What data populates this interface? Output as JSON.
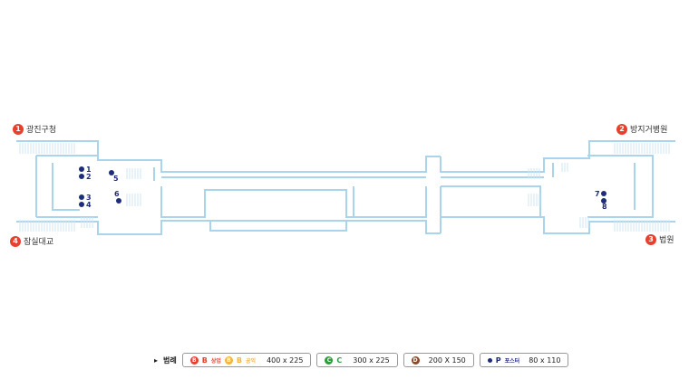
{
  "exits": [
    {
      "num": "1",
      "label": "광진구청"
    },
    {
      "num": "2",
      "label": "방지거병원"
    },
    {
      "num": "3",
      "label": "법원"
    },
    {
      "num": "4",
      "label": "잠실대교"
    }
  ],
  "markers": [
    "1",
    "2",
    "3",
    "4",
    "5",
    "6",
    "7",
    "8"
  ],
  "legend": {
    "title": "범례",
    "b_letter": "B",
    "b_letter_text": "B",
    "b_commercial": "상업",
    "b_public_letter": "B",
    "b_public_text": "B",
    "b_public": "공익",
    "b_size": "400 x 225",
    "c_letter": "C",
    "c_text": "C",
    "c_size": "300 x 225",
    "d_letter": "D",
    "d_size": "200 X 150",
    "p_letter": "P",
    "p_text": "포스터",
    "p_size": "80 x 110"
  },
  "colors": {
    "wall": "#a9d4ec",
    "exit": "#e8402e",
    "marker": "#1e2d7a"
  }
}
